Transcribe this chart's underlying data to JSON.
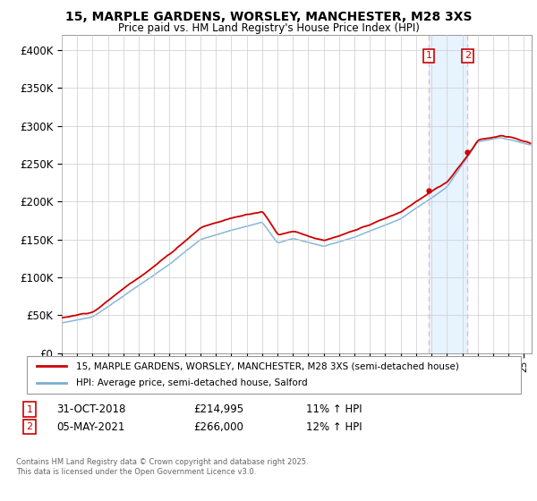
{
  "title_line1": "15, MARPLE GARDENS, WORSLEY, MANCHESTER, M28 3XS",
  "title_line2": "Price paid vs. HM Land Registry's House Price Index (HPI)",
  "legend_label1": "15, MARPLE GARDENS, WORSLEY, MANCHESTER, M28 3XS (semi-detached house)",
  "legend_label2": "HPI: Average price, semi-detached house, Salford",
  "annotation1": {
    "num": "1",
    "date": "31-OCT-2018",
    "price": "£214,995",
    "hpi": "11% ↑ HPI"
  },
  "annotation2": {
    "num": "2",
    "date": "05-MAY-2021",
    "price": "£266,000",
    "hpi": "12% ↑ HPI"
  },
  "copyright": "Contains HM Land Registry data © Crown copyright and database right 2025.\nThis data is licensed under the Open Government Licence v3.0.",
  "property_color": "#cc0000",
  "hpi_color": "#7aafd4",
  "annotation_vline_color": "#f5b8b8",
  "grid_color": "#cccccc",
  "background_color": "#ffffff",
  "ylim": [
    0,
    420000
  ],
  "yticks": [
    0,
    50000,
    100000,
    150000,
    200000,
    250000,
    300000,
    350000,
    400000
  ],
  "ytick_labels": [
    "£0",
    "£50K",
    "£100K",
    "£150K",
    "£200K",
    "£250K",
    "£300K",
    "£350K",
    "£400K"
  ],
  "sale1_year": 2018.83,
  "sale1_price": 214995,
  "sale2_year": 2021.34,
  "sale2_price": 266000,
  "xlim_start": 1995,
  "xlim_end": 2025.5
}
